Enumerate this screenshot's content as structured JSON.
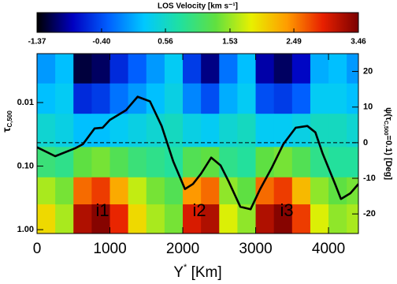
{
  "chart_data": {
    "type": "heatmap",
    "colorbar_title": "LOS Velocity [km s⁻¹]",
    "zlim": [
      -1.37,
      3.46
    ],
    "zticks": [
      -1.37,
      {
        "value": -0.4,
        "label": "-0.40"
      },
      0.56,
      1.53,
      2.49,
      3.46
    ],
    "colormap": [
      "#000000",
      "#0000c0",
      "#0060ff",
      "#00c8ff",
      "#20e0a0",
      "#60e040",
      "#e8f000",
      "#ff9c00",
      "#e82000",
      "#7a0000"
    ],
    "x_edges": [
      0,
      250,
      500,
      750,
      1000,
      1250,
      1500,
      1750,
      2000,
      2250,
      2500,
      2750,
      3000,
      3250,
      3500,
      3750,
      4000,
      4250,
      4410
    ],
    "y_edges": [
      0.0017,
      0.005,
      0.015,
      0.05,
      0.15,
      0.4,
      1.15
    ],
    "z": [
      [
        0.0,
        0.2,
        -1.2,
        -1.1,
        -0.6,
        -0.3,
        0.0,
        0.3,
        -0.5,
        -1.0,
        -0.2,
        0.2,
        -0.9,
        -1.1,
        -0.8,
        0.1,
        0.2,
        0.0
      ],
      [
        0.2,
        0.3,
        -0.6,
        -0.5,
        -0.2,
        0.0,
        0.2,
        0.4,
        -0.1,
        -0.4,
        0.1,
        0.3,
        -0.4,
        -0.5,
        -0.3,
        0.3,
        0.3,
        0.2
      ],
      [
        0.5,
        0.4,
        0.2,
        0.2,
        0.3,
        0.4,
        0.5,
        0.6,
        0.4,
        0.3,
        0.5,
        0.6,
        0.3,
        0.3,
        0.4,
        0.6,
        0.6,
        0.5
      ],
      [
        1.0,
        0.9,
        1.3,
        1.4,
        1.2,
        1.0,
        0.9,
        0.8,
        1.2,
        1.3,
        0.9,
        0.8,
        1.3,
        1.4,
        1.2,
        0.9,
        0.8,
        0.8
      ],
      [
        1.6,
        1.4,
        2.6,
        2.8,
        2.3,
        1.7,
        1.4,
        1.2,
        2.4,
        2.6,
        1.5,
        1.3,
        2.6,
        2.8,
        2.2,
        1.5,
        1.3,
        1.4
      ],
      [
        2.0,
        1.6,
        3.2,
        3.4,
        2.9,
        2.0,
        1.6,
        1.4,
        3.0,
        3.2,
        1.8,
        1.5,
        3.2,
        3.4,
        2.8,
        1.8,
        1.5,
        1.6
      ]
    ],
    "xlim": [
      0,
      4410
    ],
    "xticks": [
      0,
      1000,
      2000,
      3000,
      4000
    ],
    "xlabel": [
      "Y",
      "*",
      " [Km]"
    ],
    "ylim": [
      0.0017,
      1.15
    ],
    "ylog": true,
    "yinverted": true,
    "yticks": [
      0.01,
      {
        "value": 0.1,
        "label": "0.10"
      },
      {
        "value": 1,
        "label": "1.00"
      }
    ],
    "ylabel": [
      "τ",
      "C,500"
    ],
    "y2lim": [
      -25.5,
      25
    ],
    "y2ticks": [
      20,
      10,
      0,
      -10,
      -20
    ],
    "y2label": [
      "ψ(τ",
      "C,500",
      "=0.1) [Deg]"
    ],
    "line": {
      "axis": "y2",
      "color": "#000000",
      "x": [
        0,
        250,
        520,
        630,
        790,
        900,
        1000,
        1220,
        1380,
        1550,
        1710,
        1870,
        2030,
        2140,
        2250,
        2390,
        2520,
        2630,
        2790,
        2930,
        3060,
        3220,
        3380,
        3550,
        3710,
        3820,
        3920,
        4090,
        4170,
        4300,
        4410
      ],
      "y": [
        -1.3,
        -3.8,
        -1.6,
        -0.4,
        4,
        4.2,
        6.4,
        9.1,
        12.9,
        11.6,
        4.7,
        -5.3,
        -13,
        -11.6,
        -8.7,
        -4.2,
        -6.4,
        -10.9,
        -18,
        -18.7,
        -13.1,
        -7.1,
        -0.4,
        4.2,
        4.7,
        2.9,
        -3.1,
        -11.6,
        -15.8,
        -14.2,
        -11.6
      ]
    },
    "hline": {
      "axis": "y2",
      "value": 0,
      "style": "dashed"
    },
    "annotations": [
      "i1",
      "i2",
      "i3"
    ]
  }
}
